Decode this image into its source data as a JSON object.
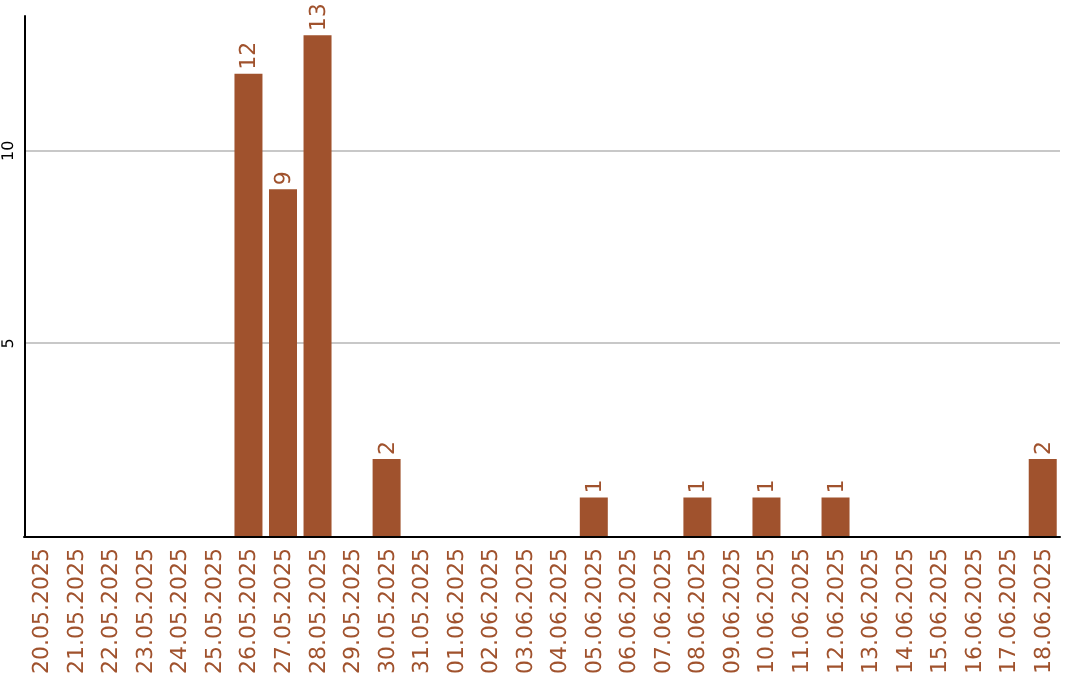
{
  "chart_data": {
    "type": "bar",
    "categories": [
      "20.05.2025",
      "21.05.2025",
      "22.05.2025",
      "23.05.2025",
      "24.05.2025",
      "25.05.2025",
      "26.05.2025",
      "27.05.2025",
      "28.05.2025",
      "29.05.2025",
      "30.05.2025",
      "31.05.2025",
      "01.06.2025",
      "02.06.2025",
      "03.06.2025",
      "04.06.2025",
      "05.06.2025",
      "06.06.2025",
      "07.06.2025",
      "08.06.2025",
      "09.06.2025",
      "10.06.2025",
      "11.06.2025",
      "12.06.2025",
      "13.06.2025",
      "14.06.2025",
      "15.06.2025",
      "16.06.2025",
      "17.06.2025",
      "18.06.2025"
    ],
    "values": [
      0,
      0,
      0,
      0,
      0,
      0,
      12,
      9,
      13,
      0,
      2,
      0,
      0,
      0,
      0,
      0,
      1,
      0,
      0,
      1,
      0,
      1,
      0,
      1,
      0,
      0,
      0,
      0,
      0,
      2
    ],
    "value_labels": [
      null,
      null,
      null,
      null,
      null,
      null,
      "12",
      "9",
      "13",
      null,
      "2",
      null,
      null,
      null,
      null,
      null,
      "1",
      null,
      null,
      "1",
      null,
      "1",
      null,
      "1",
      null,
      null,
      null,
      null,
      null,
      "2"
    ],
    "color": "#a0522d",
    "ylim": [
      0,
      13.5
    ],
    "yticks": [
      5,
      10
    ],
    "grid": "y"
  }
}
